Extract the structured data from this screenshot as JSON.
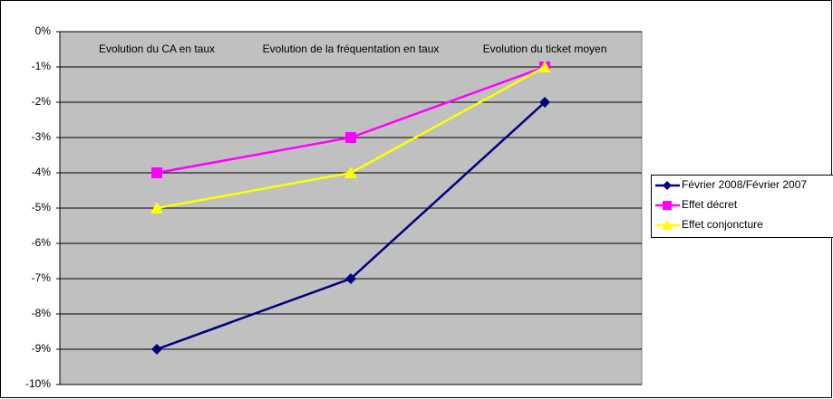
{
  "chart_data": {
    "type": "line",
    "categories": [
      "Evolution du CA en taux",
      "Evolution de la fréquentation en taux",
      "Evolution du ticket moyen"
    ],
    "series": [
      {
        "name": "Février 2008/Février 2007",
        "color": "#000080",
        "marker": "diamond",
        "values": [
          -9,
          -7,
          -2
        ]
      },
      {
        "name": "Effet décret",
        "color": "#ff00ff",
        "marker": "square",
        "values": [
          -4,
          -3,
          -1
        ]
      },
      {
        "name": "Effet conjoncture",
        "color": "#ffff00",
        "marker": "triangle",
        "values": [
          -5,
          -4,
          -1
        ]
      }
    ],
    "ylim": [
      -10,
      0
    ],
    "yticks": [
      {
        "value": 0,
        "label": "0%"
      },
      {
        "value": -1,
        "label": "-1%"
      },
      {
        "value": -2,
        "label": "-2%"
      },
      {
        "value": -3,
        "label": "-3%"
      },
      {
        "value": -4,
        "label": "-4%"
      },
      {
        "value": -5,
        "label": "-5%"
      },
      {
        "value": -6,
        "label": "-6%"
      },
      {
        "value": -7,
        "label": "-7%"
      },
      {
        "value": -8,
        "label": "-8%"
      },
      {
        "value": -9,
        "label": "-9%"
      },
      {
        "value": -10,
        "label": "-10%"
      }
    ],
    "grid": true,
    "plot_background": "#c0c0c0",
    "legend": "right"
  }
}
